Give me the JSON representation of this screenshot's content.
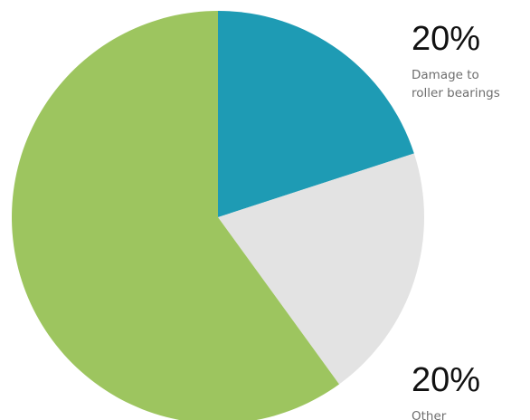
{
  "chart_data": {
    "type": "pie",
    "slices": [
      {
        "label": "Damage to roller bearings",
        "value": 20,
        "value_label": "20%",
        "label_lines": [
          "Damage to",
          "roller bearings"
        ],
        "color": "#1e9bb4"
      },
      {
        "label": "Other",
        "value": 20,
        "value_label": "20%",
        "label_lines": [
          "Other"
        ],
        "color": "#e3e3e3"
      },
      {
        "label": "",
        "value": 60,
        "value_label": "",
        "label_lines": [],
        "color": "#9dc55f"
      }
    ],
    "start_angle_deg": 0,
    "direction": "clockwise",
    "legend": "none"
  }
}
